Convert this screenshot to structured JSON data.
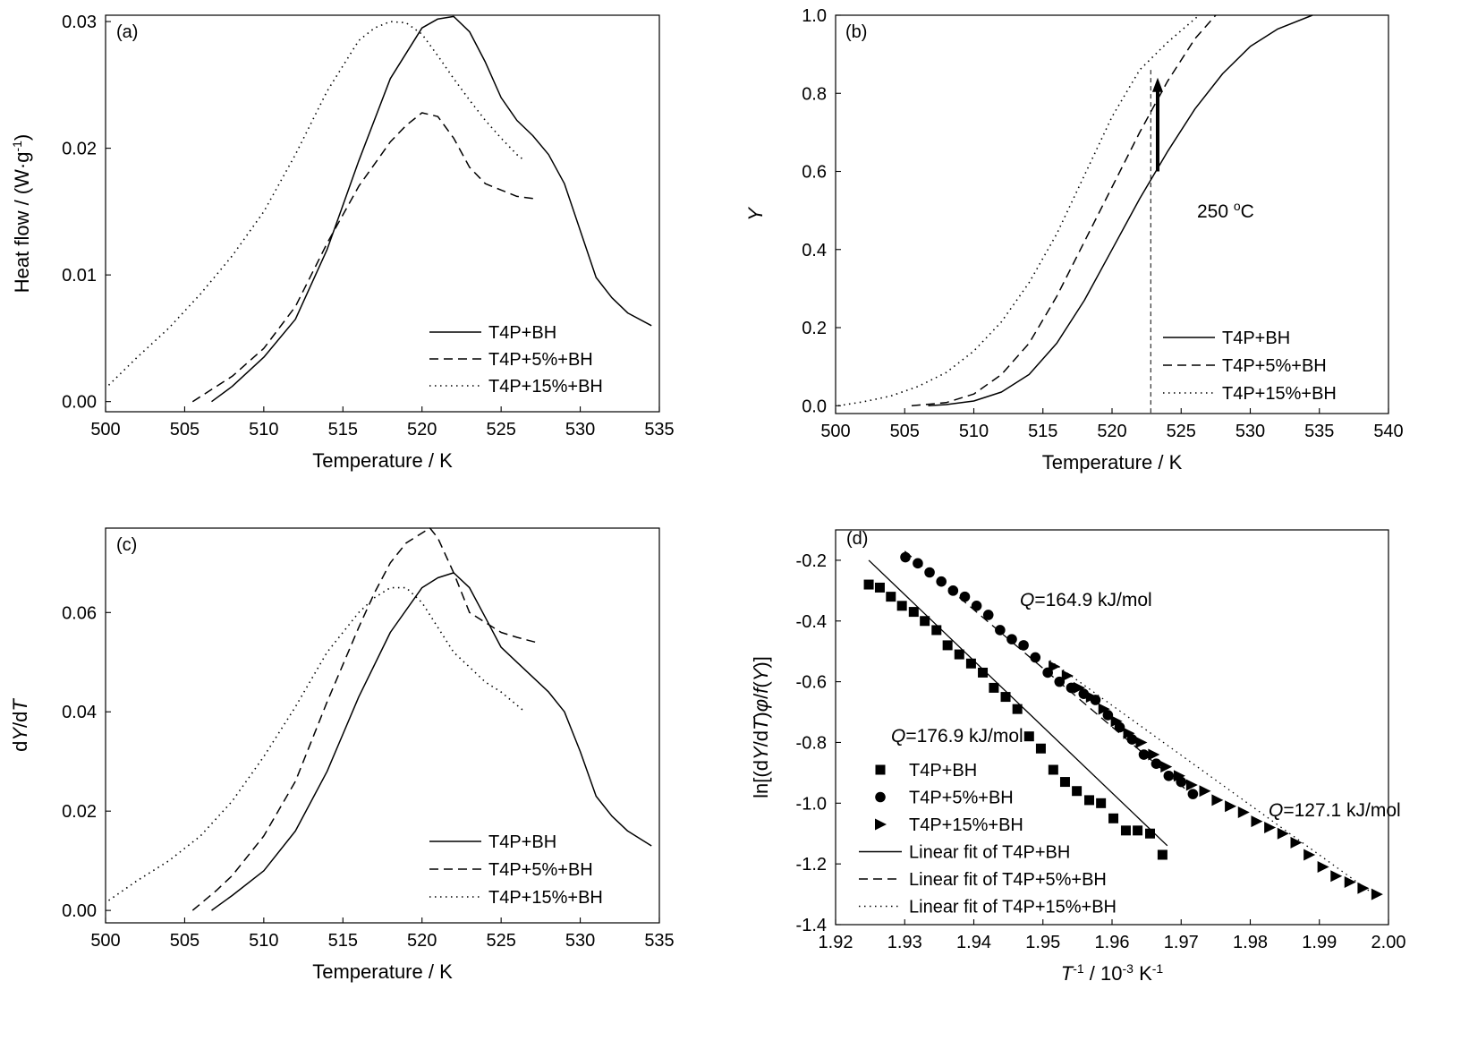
{
  "chart_data": [
    {
      "panel": "(a)",
      "type": "line",
      "xlabel": "Temperature / K",
      "ylabel": "Heat flow / (W·g⁻¹)",
      "xlim": [
        500,
        535
      ],
      "ylim": [
        -0.0008,
        0.0305
      ],
      "xticks": [
        500,
        505,
        510,
        515,
        520,
        525,
        530,
        535
      ],
      "yticks": [
        0.0,
        0.01,
        0.02,
        0.03
      ],
      "ytick_labels": [
        "0.00",
        "0.01",
        "0.02",
        "0.03"
      ],
      "legend_position": "bottom-right",
      "series": [
        {
          "name": "T4P+BH",
          "style": "solid",
          "x": [
            506.7,
            508,
            510,
            512,
            514,
            516,
            518,
            520,
            521,
            522,
            523,
            524,
            525,
            526,
            527,
            528,
            529,
            530,
            531,
            532,
            533,
            534.5
          ],
          "y": [
            0.0,
            0.0012,
            0.0035,
            0.0065,
            0.012,
            0.019,
            0.0255,
            0.0295,
            0.0302,
            0.0304,
            0.0292,
            0.0268,
            0.024,
            0.0222,
            0.021,
            0.0195,
            0.0172,
            0.0135,
            0.0098,
            0.0082,
            0.007,
            0.006
          ]
        },
        {
          "name": "T4P+5%+BH",
          "style": "dashed",
          "x": [
            505.5,
            508,
            510,
            512,
            514,
            516,
            518,
            519,
            520,
            521,
            522,
            523,
            524,
            525,
            526,
            527.2
          ],
          "y": [
            0.0,
            0.002,
            0.0042,
            0.0075,
            0.0125,
            0.017,
            0.0205,
            0.0218,
            0.0228,
            0.0225,
            0.0208,
            0.0185,
            0.0172,
            0.0167,
            0.0162,
            0.016
          ]
        },
        {
          "name": "T4P+15%+BH",
          "style": "dotted",
          "x": [
            500.2,
            502,
            504,
            506,
            508,
            510,
            512,
            514,
            516,
            517,
            518,
            519,
            520,
            521,
            522,
            523,
            524,
            525,
            526,
            526.5
          ],
          "y": [
            0.0013,
            0.0035,
            0.0058,
            0.0085,
            0.0115,
            0.015,
            0.0195,
            0.0245,
            0.0285,
            0.0295,
            0.03,
            0.0299,
            0.029,
            0.0273,
            0.0255,
            0.0238,
            0.0222,
            0.0208,
            0.0195,
            0.019
          ]
        }
      ]
    },
    {
      "panel": "(b)",
      "type": "line",
      "xlabel": "Temperature / K",
      "ylabel": "Y",
      "xlim": [
        500,
        540
      ],
      "ylim": [
        -0.02,
        1.0
      ],
      "xticks": [
        500,
        505,
        510,
        515,
        520,
        525,
        530,
        535,
        540
      ],
      "yticks": [
        0.0,
        0.2,
        0.4,
        0.6,
        0.8,
        1.0
      ],
      "ytick_labels": [
        "0.0",
        "0.2",
        "0.4",
        "0.6",
        "0.8",
        "1.0"
      ],
      "legend_position": "bottom-right",
      "annotation": {
        "text": "250 °C",
        "vline_x": 522.8,
        "arrow_x": 523.3,
        "arrow_from_y": 0.6,
        "arrow_to_y": 0.84
      },
      "series": [
        {
          "name": "T4P+BH",
          "style": "solid",
          "x": [
            506.7,
            508,
            510,
            512,
            514,
            516,
            518,
            520,
            522,
            524,
            526,
            528,
            530,
            532,
            534.5
          ],
          "y": [
            0.0,
            0.003,
            0.012,
            0.035,
            0.08,
            0.16,
            0.27,
            0.4,
            0.53,
            0.65,
            0.76,
            0.85,
            0.92,
            0.965,
            1.0
          ]
        },
        {
          "name": "T4P+5%+BH",
          "style": "dashed",
          "x": [
            505.5,
            508,
            510,
            512,
            514,
            516,
            518,
            520,
            522,
            524,
            526,
            527.5
          ],
          "y": [
            0.0,
            0.008,
            0.03,
            0.08,
            0.16,
            0.28,
            0.42,
            0.56,
            0.7,
            0.83,
            0.94,
            1.0
          ]
        },
        {
          "name": "T4P+15%+BH",
          "style": "dotted",
          "x": [
            500.2,
            502,
            504,
            506,
            508,
            510,
            512,
            514,
            516,
            518,
            520,
            522,
            524,
            526.3
          ],
          "y": [
            0.0,
            0.01,
            0.025,
            0.05,
            0.085,
            0.14,
            0.215,
            0.315,
            0.44,
            0.59,
            0.74,
            0.86,
            0.93,
            1.0
          ]
        }
      ]
    },
    {
      "panel": "(c)",
      "type": "line",
      "xlabel": "Temperature / K",
      "ylabel": "dY/dT",
      "xlim": [
        500,
        535
      ],
      "ylim": [
        -0.0025,
        0.077
      ],
      "xticks": [
        500,
        505,
        510,
        515,
        520,
        525,
        530,
        535
      ],
      "yticks": [
        0.0,
        0.02,
        0.04,
        0.06
      ],
      "ytick_labels": [
        "0.00",
        "0.02",
        "0.04",
        "0.06"
      ],
      "legend_position": "bottom-right",
      "series": [
        {
          "name": "T4P+BH",
          "style": "solid",
          "x": [
            506.7,
            508,
            510,
            512,
            514,
            516,
            518,
            520,
            521,
            522,
            523,
            524,
            525,
            526,
            527,
            528,
            529,
            530,
            531,
            532,
            533,
            534.5
          ],
          "y": [
            0.0,
            0.003,
            0.008,
            0.016,
            0.028,
            0.043,
            0.056,
            0.065,
            0.067,
            0.068,
            0.065,
            0.059,
            0.053,
            0.05,
            0.047,
            0.044,
            0.04,
            0.032,
            0.023,
            0.019,
            0.016,
            0.013
          ]
        },
        {
          "name": "T4P+5%+BH",
          "style": "dashed",
          "x": [
            505.5,
            507,
            508,
            510,
            512,
            514,
            516,
            517,
            518,
            519,
            520,
            520.5,
            521,
            522,
            523,
            524,
            525,
            526,
            527.2
          ],
          "y": [
            0.0,
            0.004,
            0.007,
            0.015,
            0.026,
            0.042,
            0.057,
            0.064,
            0.07,
            0.074,
            0.076,
            0.077,
            0.075,
            0.068,
            0.06,
            0.058,
            0.056,
            0.055,
            0.054
          ]
        },
        {
          "name": "T4P+15%+BH",
          "style": "dotted",
          "x": [
            500.2,
            502,
            504,
            506,
            508,
            510,
            512,
            514,
            516,
            517,
            518,
            519,
            520,
            521,
            522,
            523,
            524,
            525,
            526.5
          ],
          "y": [
            0.002,
            0.006,
            0.01,
            0.015,
            0.022,
            0.031,
            0.041,
            0.052,
            0.06,
            0.063,
            0.065,
            0.065,
            0.062,
            0.057,
            0.052,
            0.049,
            0.046,
            0.044,
            0.04
          ]
        }
      ]
    },
    {
      "panel": "(d)",
      "type": "scatter",
      "xlabel": "T⁻¹ / 10⁻³ K⁻¹",
      "ylabel": "ln[(dY/dT)φ/f(Y)]",
      "xlim": [
        1.92,
        2.0
      ],
      "ylim": [
        -1.4,
        -0.1
      ],
      "xticks": [
        1.92,
        1.93,
        1.94,
        1.95,
        1.96,
        1.97,
        1.98,
        1.99,
        2.0
      ],
      "xtick_labels": [
        "1.92",
        "1.93",
        "1.94",
        "1.95",
        "1.96",
        "1.97",
        "1.98",
        "1.99",
        "2.00"
      ],
      "yticks": [
        -1.4,
        -1.2,
        -1.0,
        -0.8,
        -0.6,
        -0.4,
        -0.2
      ],
      "ytick_labels": [
        "-1.4",
        "-1.2",
        "-1.0",
        "-0.8",
        "-0.6",
        "-0.4",
        "-0.2"
      ],
      "legend_position": "bottom-left",
      "annotations": [
        {
          "q": "Q",
          "text": "=164.9 kJ/mol",
          "x": 1.941,
          "y": -0.28
        },
        {
          "q": "Q",
          "text": "=176.9 kJ/mol",
          "x": 1.9255,
          "y": -0.72
        },
        {
          "q": "Q",
          "text": "=127.1 kJ/mol",
          "x": 1.977,
          "y": -0.91
        }
      ],
      "series": [
        {
          "name": "T4P+BH",
          "marker": "square",
          "x": [
            1.9248,
            1.9264,
            1.928,
            1.9296,
            1.9313,
            1.9329,
            1.9346,
            1.9362,
            1.9379,
            1.9396,
            1.9413,
            1.9429,
            1.9446,
            1.9463,
            1.948,
            1.9497,
            1.9515,
            1.9532,
            1.9549,
            1.9567,
            1.9584,
            1.9602,
            1.962,
            1.9637,
            1.9655,
            1.9673
          ],
          "y": [
            -0.28,
            -0.29,
            -0.32,
            -0.35,
            -0.37,
            -0.4,
            -0.43,
            -0.48,
            -0.51,
            -0.54,
            -0.57,
            -0.62,
            -0.65,
            -0.69,
            -0.78,
            -0.82,
            -0.89,
            -0.93,
            -0.96,
            -0.99,
            -1.0,
            -1.05,
            -1.09,
            -1.09,
            -1.1,
            -1.17
          ]
        },
        {
          "name": "T4P+5%+BH",
          "marker": "circle",
          "x": [
            1.9301,
            1.9319,
            1.9336,
            1.9353,
            1.937,
            1.9387,
            1.9404,
            1.9421,
            1.9438,
            1.9455,
            1.9472,
            1.9489,
            1.9507,
            1.9524,
            1.9541,
            1.9559,
            1.9576,
            1.9594,
            1.9611,
            1.9629,
            1.9646,
            1.9664,
            1.9682,
            1.97,
            1.9717
          ],
          "y": [
            -0.19,
            -0.21,
            -0.24,
            -0.27,
            -0.3,
            -0.32,
            -0.35,
            -0.38,
            -0.43,
            -0.46,
            -0.48,
            -0.52,
            -0.57,
            -0.6,
            -0.62,
            -0.64,
            -0.66,
            -0.71,
            -0.75,
            -0.79,
            -0.84,
            -0.87,
            -0.91,
            -0.93,
            -0.97
          ]
        },
        {
          "name": "T4P+15%+BH",
          "marker": "triangle-right",
          "x": [
            1.9516,
            1.9535,
            1.9552,
            1.957,
            1.9588,
            1.9606,
            1.9624,
            1.9642,
            1.966,
            1.9678,
            1.9697,
            1.9715,
            1.9734,
            1.9752,
            1.9771,
            1.979,
            1.9809,
            1.9828,
            1.9847,
            1.9866,
            1.9885,
            1.9905,
            1.9924,
            1.9944,
            1.9963,
            1.9983
          ],
          "y": [
            -0.55,
            -0.58,
            -0.62,
            -0.65,
            -0.69,
            -0.73,
            -0.77,
            -0.8,
            -0.84,
            -0.88,
            -0.91,
            -0.94,
            -0.96,
            -0.99,
            -1.01,
            -1.03,
            -1.06,
            -1.08,
            -1.1,
            -1.13,
            -1.17,
            -1.21,
            -1.24,
            -1.26,
            -1.28,
            -1.3
          ]
        },
        {
          "name": "Linear fit of T4P+BH",
          "style": "solid",
          "fit": [
            [
              1.9248,
              -0.2
            ],
            [
              1.968,
              -1.14
            ]
          ]
        },
        {
          "name": "Linear fit of T4P+5%+BH",
          "style": "dashed",
          "fit": [
            [
              1.93,
              -0.17
            ],
            [
              1.972,
              -0.98
            ]
          ]
        },
        {
          "name": "Linear fit of T4P+15%+BH",
          "style": "dotted",
          "fit": [
            [
              1.951,
              -0.53
            ],
            [
              1.9985,
              -1.31
            ]
          ]
        }
      ]
    }
  ]
}
